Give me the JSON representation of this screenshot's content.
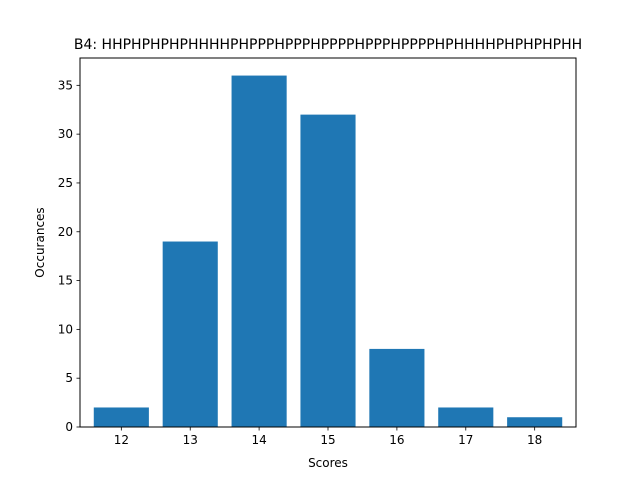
{
  "chart_data": {
    "type": "bar",
    "title": "B4: HHPHPHPHPHHHHPHPPPHPPPHPPPPHPPPHPPPPHPHHHHPHPHPHPHH",
    "xlabel": "Scores",
    "ylabel": "Occurances",
    "categories": [
      "12",
      "13",
      "14",
      "15",
      "16",
      "17",
      "18"
    ],
    "x": [
      12,
      13,
      14,
      15,
      16,
      17,
      18
    ],
    "values": [
      2,
      19,
      36,
      32,
      8,
      2,
      1
    ],
    "xlim": [
      11.4,
      18.6
    ],
    "ylim": [
      0,
      37.8
    ],
    "yticks": [
      "0",
      "5",
      "10",
      "15",
      "20",
      "25",
      "30",
      "35"
    ],
    "bar_color": "#1f77b4",
    "grid": false,
    "legend": false
  }
}
